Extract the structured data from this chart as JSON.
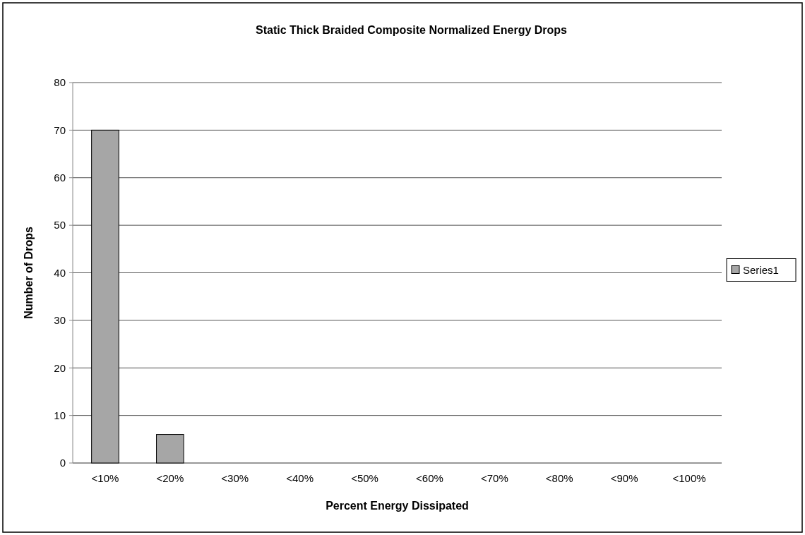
{
  "chart_data": {
    "type": "bar",
    "title": "Static Thick Braided Composite Normalized Energy Drops",
    "xlabel": "Percent Energy Dissipated",
    "ylabel": "Number of Drops",
    "categories": [
      "<10%",
      "<20%",
      "<30%",
      "<40%",
      "<50%",
      "<60%",
      "<70%",
      "<80%",
      "<90%",
      "<100%"
    ],
    "series": [
      {
        "name": "Series1",
        "color": "#a6a6a6",
        "values": [
          70,
          6,
          0,
          0,
          0,
          0,
          0,
          0,
          0,
          0
        ]
      }
    ],
    "ylim": [
      0,
      80
    ],
    "yticks": [
      0,
      10,
      20,
      30,
      40,
      50,
      60,
      70,
      80
    ],
    "grid": "y",
    "legend": "right"
  }
}
